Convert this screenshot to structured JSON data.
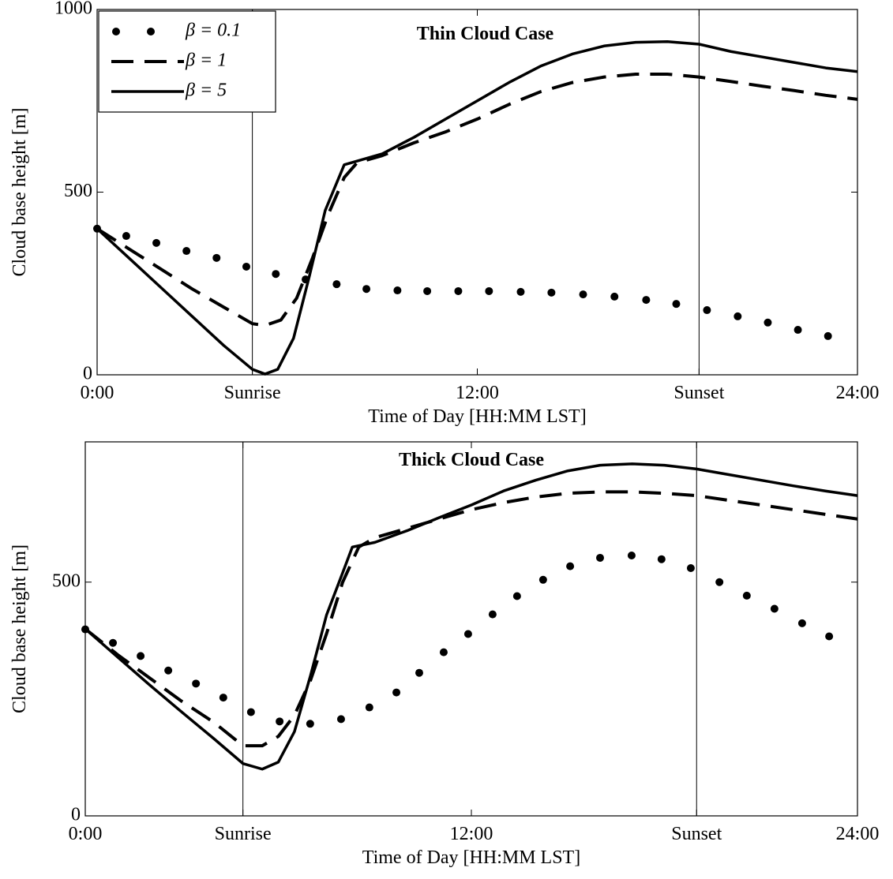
{
  "chart_data": [
    {
      "type": "line",
      "title": "Thin Cloud Case",
      "xlabel": "Time of Day [HH:MM LST]",
      "ylabel": "Cloud base height [m]",
      "xlim": [
        0,
        24
      ],
      "ylim": [
        0,
        1000
      ],
      "xticks": [
        {
          "value": 0,
          "label": "0:00"
        },
        {
          "value": 4.9,
          "label": "Sunrise"
        },
        {
          "value": 12,
          "label": "12:00"
        },
        {
          "value": 19,
          "label": "Sunset"
        },
        {
          "value": 24,
          "label": "24:00"
        }
      ],
      "yticks": [
        0,
        500,
        1000
      ],
      "vlines": [
        4.9,
        19
      ],
      "legend": "upper left",
      "series": [
        {
          "name": "β = 0.1",
          "style": "dots",
          "color": "#000000",
          "x": [
            0,
            0.92,
            1.87,
            2.82,
            3.77,
            4.71,
            5.64,
            6.58,
            7.56,
            8.5,
            9.48,
            10.42,
            11.4,
            12.37,
            13.37,
            14.34,
            15.34,
            16.33,
            17.33,
            18.28,
            19.25,
            20.22,
            21.17,
            22.12,
            23.07
          ],
          "values": [
            400,
            380,
            361,
            339,
            320,
            296,
            276,
            261,
            248,
            235,
            231,
            229,
            229,
            229,
            227,
            225,
            220,
            214,
            205,
            194,
            177,
            160,
            143,
            123,
            106
          ]
        },
        {
          "name": "β = 1",
          "style": "dashed",
          "color": "#000000",
          "x": [
            0,
            1,
            2,
            3,
            4,
            4.9,
            5.3,
            5.8,
            6.3,
            6.8,
            7.3,
            7.8,
            8.2,
            9,
            10,
            11,
            12,
            13,
            14,
            15,
            16,
            17,
            18,
            19,
            20,
            21,
            22,
            23,
            24
          ],
          "values": [
            400,
            345,
            290,
            235,
            185,
            140,
            135,
            150,
            210,
            320,
            440,
            540,
            580,
            600,
            635,
            665,
            700,
            740,
            775,
            800,
            815,
            823,
            823,
            815,
            803,
            790,
            778,
            765,
            754
          ]
        },
        {
          "name": "β = 5",
          "style": "solid",
          "color": "#000000",
          "x": [
            0,
            1,
            2,
            3,
            4,
            4.9,
            5.3,
            5.7,
            6.2,
            6.7,
            7.2,
            7.8,
            9,
            10,
            11,
            12,
            13,
            14,
            15,
            16,
            17,
            18,
            19,
            20,
            21,
            22,
            23,
            24
          ],
          "values": [
            400,
            320,
            240,
            160,
            80,
            15,
            2,
            15,
            100,
            270,
            450,
            575,
            605,
            650,
            700,
            750,
            800,
            845,
            878,
            900,
            910,
            912,
            905,
            885,
            870,
            855,
            840,
            830
          ]
        }
      ]
    },
    {
      "type": "line",
      "title": "Thick Cloud Case",
      "xlabel": "Time of Day [HH:MM LST]",
      "ylabel": "Cloud base height [m]",
      "xlim": [
        0,
        24
      ],
      "ylim": [
        0,
        800
      ],
      "xticks": [
        {
          "value": 0,
          "label": "0:00"
        },
        {
          "value": 4.9,
          "label": "Sunrise"
        },
        {
          "value": 12,
          "label": "12:00"
        },
        {
          "value": 19,
          "label": "Sunset"
        },
        {
          "value": 24,
          "label": "24:00"
        }
      ],
      "yticks": [
        0,
        500
      ],
      "vlines": [
        4.9,
        19
      ],
      "series": [
        {
          "style": "dots",
          "color": "#000000",
          "x": [
            0,
            0.86,
            1.72,
            2.58,
            3.44,
            4.29,
            5.15,
            6.04,
            6.99,
            7.95,
            8.83,
            9.67,
            10.38,
            11.14,
            11.9,
            12.66,
            13.42,
            14.23,
            15.07,
            16,
            16.98,
            17.91,
            18.82,
            19.71,
            20.56,
            21.42,
            22.28,
            23.12
          ],
          "values": [
            399,
            370,
            342,
            311,
            283,
            253,
            222,
            202,
            197,
            207,
            232,
            264,
            306,
            350,
            389,
            431,
            470,
            505,
            534,
            552,
            557,
            549,
            530,
            500,
            471,
            443,
            412,
            384
          ]
        },
        {
          "style": "dashed",
          "color": "#000000",
          "x": [
            0,
            1,
            2,
            3,
            4,
            4.9,
            5.5,
            6,
            6.5,
            7,
            7.5,
            8,
            8.5,
            9,
            10,
            11,
            12,
            13,
            14,
            15,
            16,
            17,
            18,
            19,
            20,
            21,
            22,
            23,
            24
          ],
          "values": [
            400,
            345,
            295,
            245,
            200,
            150,
            150,
            170,
            215,
            290,
            390,
            500,
            575,
            595,
            615,
            635,
            655,
            670,
            682,
            690,
            693,
            693,
            690,
            685,
            675,
            665,
            655,
            645,
            635
          ]
        },
        {
          "style": "solid",
          "color": "#000000",
          "x": [
            0,
            1,
            2,
            3,
            4,
            4.9,
            5.5,
            6,
            6.5,
            7,
            7.5,
            8,
            8.3,
            9,
            10,
            11,
            12,
            13,
            14,
            15,
            16,
            17,
            18,
            19,
            20,
            21,
            22,
            23,
            24
          ],
          "values": [
            400,
            340,
            280,
            222,
            165,
            112,
            100,
            115,
            180,
            300,
            430,
            520,
            575,
            585,
            610,
            638,
            665,
            695,
            718,
            738,
            750,
            753,
            750,
            742,
            730,
            718,
            706,
            695,
            685
          ]
        }
      ]
    }
  ]
}
